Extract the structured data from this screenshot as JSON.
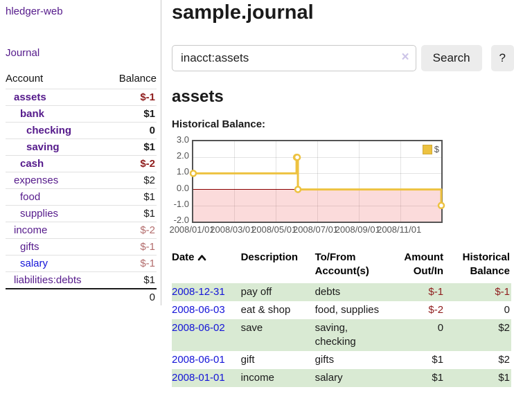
{
  "sidebar": {
    "app_title": "hledger-web",
    "journal_label": "Journal",
    "accounts": {
      "header_account": "Account",
      "header_balance": "Balance",
      "rows": [
        {
          "name": "assets",
          "balance": "$-1",
          "indent": 0,
          "bold": true,
          "balance_class": "neg"
        },
        {
          "name": "bank",
          "balance": "$1",
          "indent": 1,
          "bold": true,
          "balance_class": ""
        },
        {
          "name": "checking",
          "balance": "0",
          "indent": 2,
          "bold": true,
          "balance_class": ""
        },
        {
          "name": "saving",
          "balance": "$1",
          "indent": 2,
          "bold": true,
          "balance_class": ""
        },
        {
          "name": "cash",
          "balance": "$-2",
          "indent": 1,
          "bold": true,
          "balance_class": "neg"
        },
        {
          "name": "expenses",
          "balance": "$2",
          "indent": 0,
          "bold": false,
          "balance_class": ""
        },
        {
          "name": "food",
          "balance": "$1",
          "indent": 1,
          "bold": false,
          "balance_class": ""
        },
        {
          "name": "supplies",
          "balance": "$1",
          "indent": 1,
          "bold": false,
          "balance_class": ""
        },
        {
          "name": "income",
          "balance": "$-2",
          "indent": 0,
          "bold": false,
          "balance_class": "negdim"
        },
        {
          "name": "gifts",
          "balance": "$-1",
          "indent": 1,
          "bold": false,
          "balance_class": "negdim"
        },
        {
          "name": "salary",
          "balance": "$-1",
          "indent": 1,
          "bold": false,
          "balance_class": "negdim",
          "blue": true
        },
        {
          "name": "liabilities:debts",
          "balance": "$1",
          "indent": 0,
          "bold": false,
          "balance_class": ""
        }
      ],
      "total": "0"
    }
  },
  "header": {
    "title": "sample.journal"
  },
  "search": {
    "value": "inacct:assets",
    "clear_icon": "×",
    "search_label": "Search",
    "help_label": "?"
  },
  "register": {
    "account_heading": "assets",
    "chart_label": "Historical Balance:"
  },
  "chart_data": {
    "type": "line",
    "step": true,
    "title": "Historical Balance",
    "x_range": [
      "2008-01-01",
      "2008-12-31"
    ],
    "ylim": [
      -2,
      3
    ],
    "y_ticks": [
      "3.0",
      "2.0",
      "1.0",
      "0.0",
      "-1.0",
      "-2.0"
    ],
    "x_ticks": [
      "2008/01/01",
      "2008/03/01",
      "2008/05/01",
      "2008/07/01",
      "2008/09/01",
      "2008/11/01"
    ],
    "series": [
      {
        "name": "$",
        "color": "#edc240",
        "points": [
          [
            "2008-01-01",
            1
          ],
          [
            "2008-06-01",
            2
          ],
          [
            "2008-06-02",
            2
          ],
          [
            "2008-06-03",
            0
          ],
          [
            "2008-12-31",
            -1
          ]
        ]
      }
    ],
    "negative_region_color": "rgba(235,90,90,0.22)",
    "zero_line_color": "#8b0000",
    "legend": {
      "label": "$",
      "position": "top-right",
      "swatch_color": "#edc240"
    },
    "grid": true
  },
  "transactions": {
    "headers": {
      "date": "Date",
      "description": "Description",
      "accounts": "To/From Account(s)",
      "amount": "Amount Out/In",
      "balance": "Historical Balance"
    },
    "sort": {
      "column": "date",
      "direction": "ascending"
    },
    "rows": [
      {
        "date": "2008-12-31",
        "description": "pay off",
        "accounts": "debts",
        "amount": "$-1",
        "balance": "$-1"
      },
      {
        "date": "2008-06-03",
        "description": "eat & shop",
        "accounts": "food, supplies",
        "amount": "$-2",
        "balance": "0"
      },
      {
        "date": "2008-06-02",
        "description": "save",
        "accounts": "saving, checking",
        "amount": "0",
        "balance": "$2"
      },
      {
        "date": "2008-06-01",
        "description": "gift",
        "accounts": "gifts",
        "amount": "$1",
        "balance": "$2"
      },
      {
        "date": "2008-01-01",
        "description": "income",
        "accounts": "salary",
        "amount": "$1",
        "balance": "$1"
      }
    ]
  },
  "colors": {
    "link_purple": "#551a8b",
    "link_blue": "#1414d8",
    "negative_red": "#8f1d1d",
    "negative_dim": "#b36d6d",
    "row_stripe_green": "#d9ead3",
    "chart_line": "#edc240"
  }
}
